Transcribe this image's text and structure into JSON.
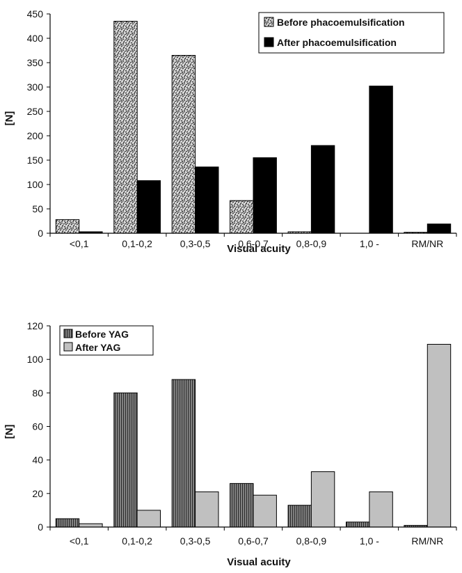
{
  "chart_data": [
    {
      "type": "bar",
      "title": "",
      "xlabel": "Visual acuity",
      "ylabel": "[N]",
      "ylim": [
        0,
        450
      ],
      "yticks": [
        0,
        50,
        100,
        150,
        200,
        250,
        300,
        350,
        400,
        450
      ],
      "categories": [
        "<0,1",
        "0,1-0,2",
        "0,3-0,5",
        "0,6-0,7",
        "0,8-0,9",
        "1,0 -",
        "RM/NR"
      ],
      "series": [
        {
          "name": "Before phacoemulsification",
          "values": [
            28,
            435,
            365,
            67,
            3,
            0,
            2
          ],
          "pattern": "stipple"
        },
        {
          "name": "After phacoemulsification",
          "values": [
            3,
            108,
            136,
            155,
            180,
            302,
            19
          ],
          "pattern": "black"
        }
      ],
      "legend": "top-right",
      "grid": false
    },
    {
      "type": "bar",
      "title": "",
      "xlabel": "Visual acuity",
      "ylabel": "[N]",
      "ylim": [
        0,
        120
      ],
      "yticks": [
        0,
        20,
        40,
        60,
        80,
        100,
        120
      ],
      "categories": [
        "<0,1",
        "0,1-0,2",
        "0,3-0,5",
        "0,6-0,7",
        "0,8-0,9",
        "1,0 -",
        "RM/NR"
      ],
      "series": [
        {
          "name": "Before YAG",
          "values": [
            5,
            80,
            88,
            26,
            13,
            3,
            1
          ],
          "pattern": "dark-vertical-stripes"
        },
        {
          "name": "After YAG",
          "values": [
            2,
            10,
            21,
            19,
            33,
            21,
            109
          ],
          "pattern": "light-gray"
        }
      ],
      "legend": "top-left",
      "grid": false
    }
  ]
}
